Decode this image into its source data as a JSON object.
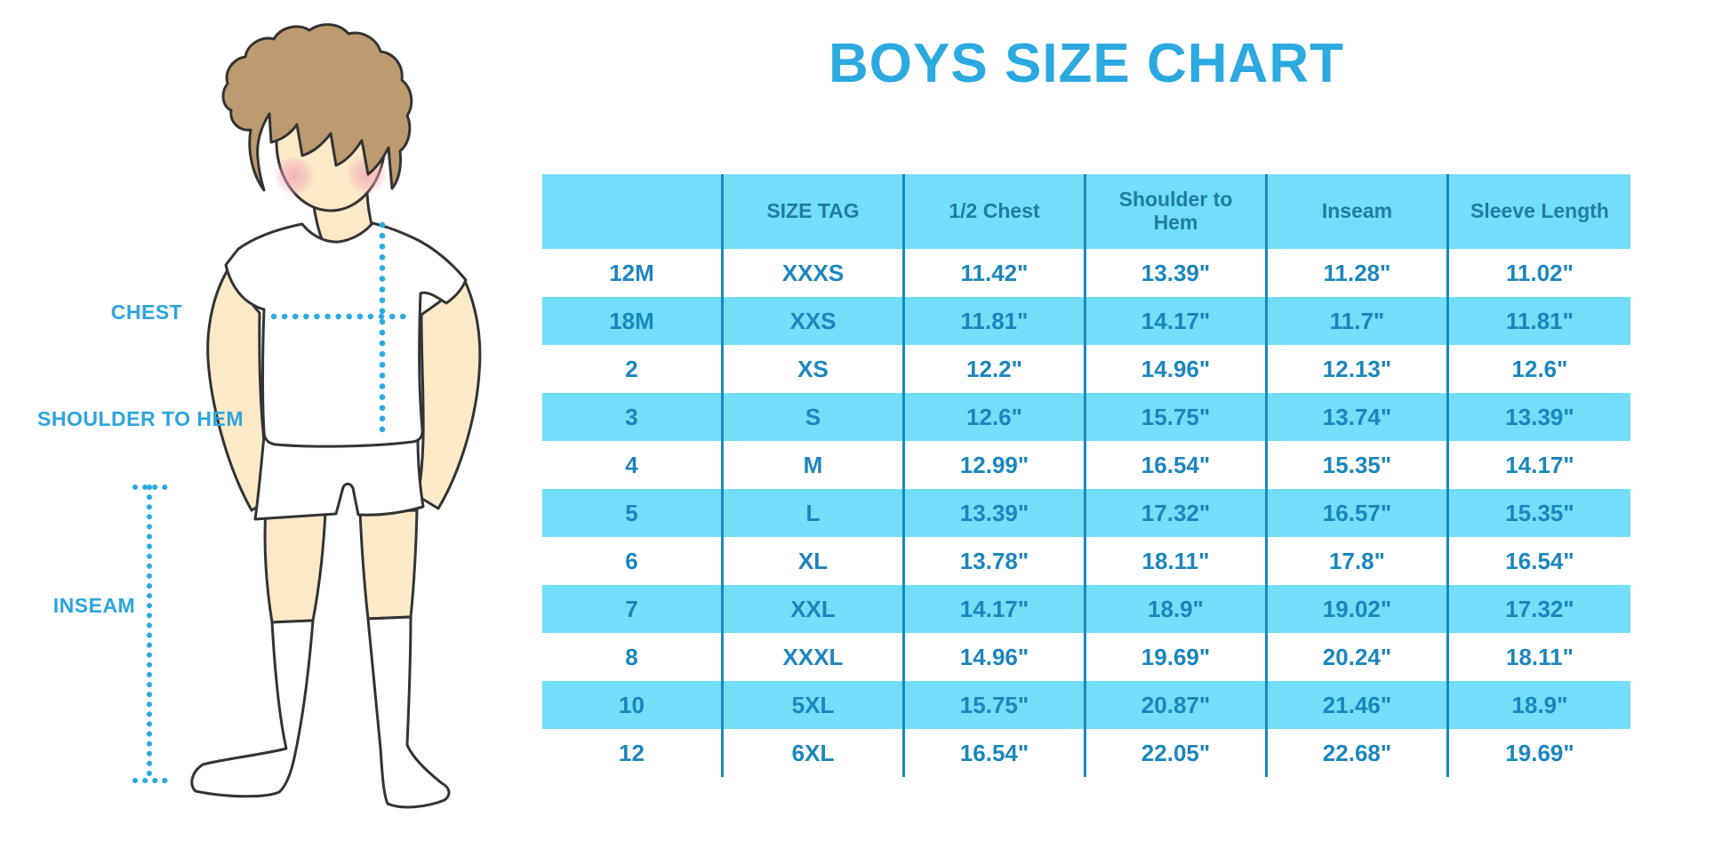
{
  "title": "BOYS SIZE CHART",
  "figure": {
    "labels": {
      "chest": "CHEST",
      "shoulder_to_hem": "SHOULDER TO HEM",
      "inseam": "INSEAM"
    }
  },
  "chart_data": {
    "type": "table",
    "title": "BOYS SIZE CHART",
    "columns": [
      "",
      "SIZE TAG",
      "1/2 Chest",
      "Shoulder to Hem",
      "Inseam",
      "Sleeve Length"
    ],
    "rows": [
      [
        "12M",
        "XXXS",
        "11.42\"",
        "13.39\"",
        "11.28\"",
        "11.02\""
      ],
      [
        "18M",
        "XXS",
        "11.81\"",
        "14.17\"",
        "11.7\"",
        "11.81\""
      ],
      [
        "2",
        "XS",
        "12.2\"",
        "14.96\"",
        "12.13\"",
        "12.6\""
      ],
      [
        "3",
        "S",
        "12.6\"",
        "15.75\"",
        "13.74\"",
        "13.39\""
      ],
      [
        "4",
        "M",
        "12.99\"",
        "16.54\"",
        "15.35\"",
        "14.17\""
      ],
      [
        "5",
        "L",
        "13.39\"",
        "17.32\"",
        "16.57\"",
        "15.35\""
      ],
      [
        "6",
        "XL",
        "13.78\"",
        "18.11\"",
        "17.8\"",
        "16.54\""
      ],
      [
        "7",
        "XXL",
        "14.17\"",
        "18.9\"",
        "19.02\"",
        "17.32\""
      ],
      [
        "8",
        "XXXL",
        "14.96\"",
        "19.69\"",
        "20.24\"",
        "18.11\""
      ],
      [
        "10",
        "5XL",
        "15.75\"",
        "20.87\"",
        "21.46\"",
        "18.9\""
      ],
      [
        "12",
        "6XL",
        "16.54\"",
        "22.05\"",
        "22.68\"",
        "19.69\""
      ]
    ],
    "units": "inches",
    "layout": {
      "striped": true,
      "stripe_rows": "alternating starting with second data row",
      "legend": "none",
      "grid": "vertical dividers only"
    }
  },
  "colors": {
    "accent_blue": "#2BA9E0",
    "table_stripe": "#73DEF8",
    "table_divider": "#1888BE",
    "cell_text": "#1B86BD",
    "header_text": "#1F7CA7",
    "dotted_line": "#29ABE2",
    "hair": "#BD9B70",
    "skin": "#FBE9C8",
    "cheek": "#F2A6B8",
    "outline": "#333333"
  }
}
